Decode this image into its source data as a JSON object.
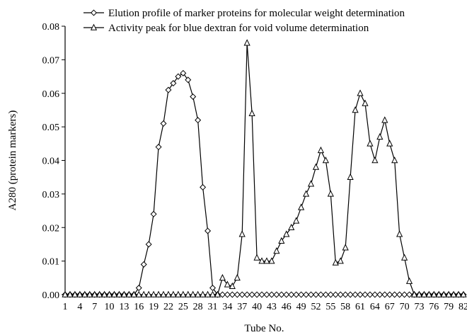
{
  "chart_data": {
    "type": "line",
    "xlabel": "Tube No.",
    "ylabel": "A280 (protein markers)",
    "xlim": [
      1,
      82
    ],
    "ylim": [
      0,
      0.08
    ],
    "x_ticks": [
      "1",
      "4",
      "7",
      "10",
      "13",
      "16",
      "19",
      "22",
      "25",
      "28",
      "31",
      "34",
      "37",
      "40",
      "43",
      "46",
      "49",
      "52",
      "55",
      "58",
      "61",
      "64",
      "67",
      "70",
      "73",
      "76",
      "79",
      "82"
    ],
    "y_ticks": [
      "0.00",
      "0.01",
      "0.02",
      "0.03",
      "0.04",
      "0.05",
      "0.06",
      "0.07",
      "0.08"
    ],
    "legend_position": "top",
    "grid": false,
    "series": [
      {
        "name": "Elution profile of marker proteins for molecular weight determination",
        "marker": "diamond",
        "x": [
          1,
          2,
          3,
          4,
          5,
          6,
          7,
          8,
          9,
          10,
          11,
          12,
          13,
          14,
          15,
          16,
          17,
          18,
          19,
          20,
          21,
          22,
          23,
          24,
          25,
          26,
          27,
          28,
          29,
          30,
          31,
          32,
          33,
          34,
          35,
          36,
          37,
          38,
          39,
          40,
          41,
          42,
          43,
          44,
          45,
          46,
          47,
          48,
          49,
          50,
          51,
          52,
          53,
          54,
          55,
          56,
          57,
          58,
          59,
          60,
          61,
          62,
          63,
          64,
          65,
          66,
          67,
          68,
          69,
          70,
          71,
          72,
          73,
          74,
          75,
          76,
          77,
          78,
          79,
          80,
          81,
          82
        ],
        "y": [
          0,
          0,
          0,
          0,
          0,
          0,
          0,
          0,
          0,
          0,
          0,
          0,
          0,
          0,
          0,
          0.002,
          0.009,
          0.015,
          0.024,
          0.044,
          0.051,
          0.061,
          0.063,
          0.065,
          0.066,
          0.064,
          0.059,
          0.052,
          0.032,
          0.019,
          0.002,
          0,
          0,
          0,
          0,
          0,
          0,
          0,
          0,
          0,
          0,
          0,
          0,
          0,
          0,
          0,
          0,
          0,
          0,
          0,
          0,
          0,
          0,
          0,
          0,
          0,
          0,
          0,
          0,
          0,
          0,
          0,
          0,
          0,
          0,
          0,
          0,
          0,
          0,
          0,
          0,
          0,
          0,
          0,
          0,
          0,
          0,
          0,
          0,
          0,
          0,
          0
        ]
      },
      {
        "name": "Activity peak for blue dextran for void volume determination",
        "marker": "triangle",
        "x": [
          1,
          2,
          3,
          4,
          5,
          6,
          7,
          8,
          9,
          10,
          11,
          12,
          13,
          14,
          15,
          16,
          17,
          18,
          19,
          20,
          21,
          22,
          23,
          24,
          25,
          26,
          27,
          28,
          29,
          30,
          31,
          32,
          33,
          34,
          35,
          36,
          37,
          38,
          39,
          40,
          41,
          42,
          43,
          44,
          45,
          46,
          47,
          48,
          49,
          50,
          51,
          52,
          53,
          54,
          55,
          56,
          57,
          58,
          59,
          60,
          61,
          62,
          63,
          64,
          65,
          66,
          67,
          68,
          69,
          70,
          71,
          72,
          73,
          74,
          75,
          76,
          77,
          78,
          79,
          80,
          81,
          82
        ],
        "y": [
          0,
          0,
          0,
          0,
          0,
          0,
          0,
          0,
          0,
          0,
          0,
          0,
          0,
          0,
          0,
          0,
          0,
          0,
          0,
          0,
          0,
          0,
          0,
          0,
          0,
          0,
          0,
          0,
          0,
          0,
          0,
          0,
          0.005,
          0.003,
          0.0025,
          0.005,
          0.018,
          0.075,
          0.054,
          0.011,
          0.01,
          0.01,
          0.01,
          0.013,
          0.016,
          0.018,
          0.02,
          0.022,
          0.026,
          0.03,
          0.033,
          0.038,
          0.043,
          0.04,
          0.03,
          0.0095,
          0.01,
          0.014,
          0.035,
          0.055,
          0.06,
          0.057,
          0.045,
          0.04,
          0.047,
          0.052,
          0.045,
          0.04,
          0.018,
          0.011,
          0.004,
          0,
          0,
          0,
          0,
          0,
          0,
          0,
          0,
          0,
          0,
          0
        ]
      }
    ]
  }
}
